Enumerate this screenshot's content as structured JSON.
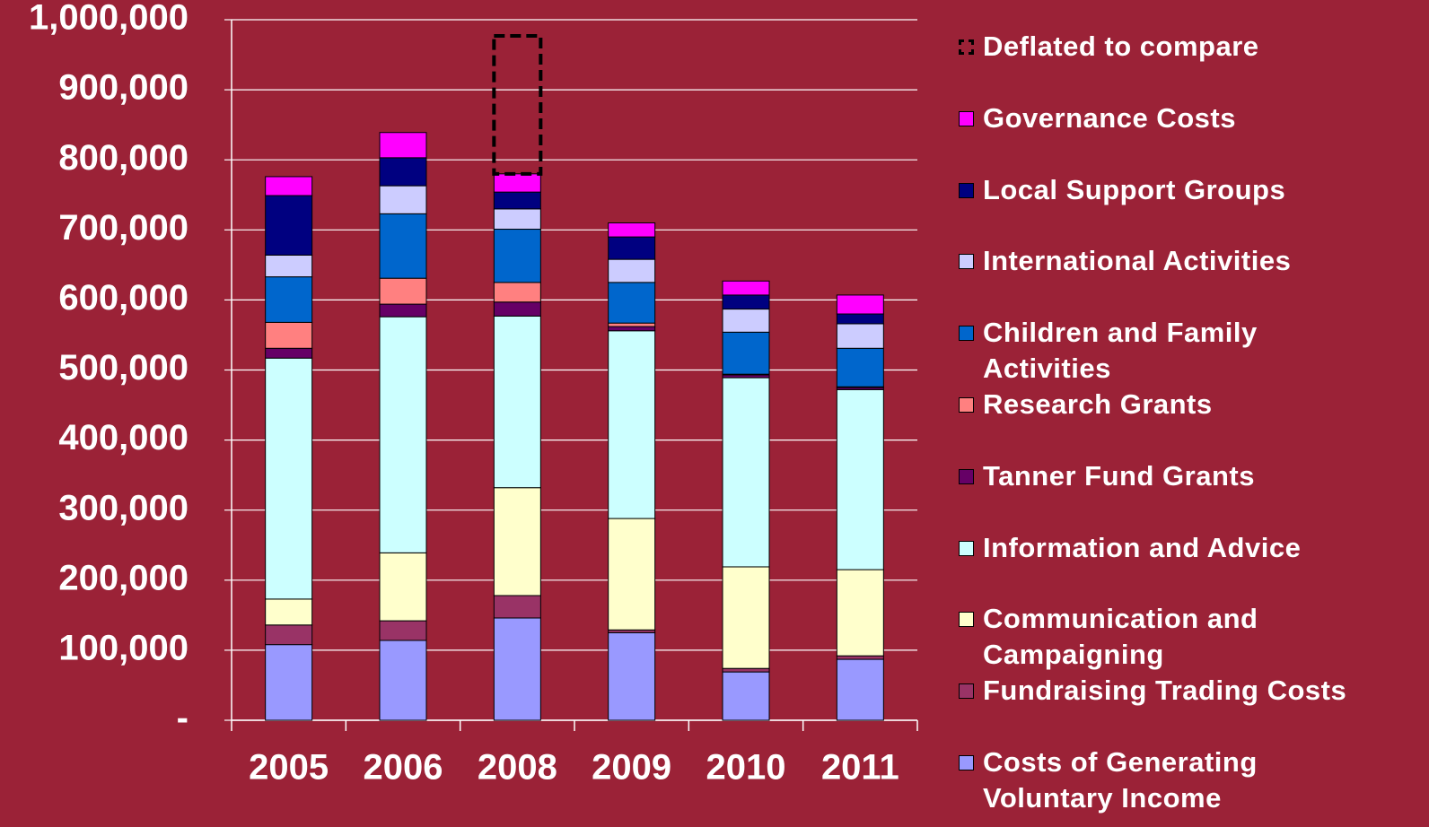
{
  "chart_data": {
    "type": "stacked_bar",
    "categories": [
      "2005",
      "2006",
      "2008",
      "2009",
      "2010",
      "2011"
    ],
    "series": [
      {
        "name": "Costs of Generating Voluntary Income",
        "color": "#9999ff",
        "values": [
          108000,
          114000,
          146000,
          125000,
          69000,
          87000
        ]
      },
      {
        "name": "Fundraising Trading Costs",
        "color": "#993366",
        "values": [
          28000,
          28000,
          32000,
          4000,
          5000,
          5000
        ]
      },
      {
        "name": "Communication and Campaigning",
        "color": "#ffffcc",
        "values": [
          37000,
          97000,
          154000,
          159000,
          145000,
          123000
        ]
      },
      {
        "name": "Information and Advice",
        "color": "#ccffff",
        "values": [
          344000,
          337000,
          245000,
          268000,
          270000,
          257000
        ]
      },
      {
        "name": "Tanner Fund Grants",
        "color": "#660066",
        "values": [
          14000,
          18000,
          20000,
          6000,
          4000,
          3000
        ]
      },
      {
        "name": "Research Grants",
        "color": "#ff8080",
        "values": [
          37000,
          37000,
          28000,
          5000,
          1000,
          1000
        ]
      },
      {
        "name": "Children and Family Activities",
        "color": "#0066cc",
        "values": [
          65000,
          92000,
          76000,
          58000,
          60000,
          55000
        ]
      },
      {
        "name": "International Activities",
        "color": "#ccccff",
        "values": [
          31000,
          40000,
          29000,
          33000,
          33000,
          35000
        ]
      },
      {
        "name": "Local Support Groups",
        "color": "#000080",
        "values": [
          85000,
          40000,
          24000,
          32000,
          20000,
          14000
        ]
      },
      {
        "name": "Governance Costs",
        "color": "#ff00ff",
        "values": [
          27000,
          36000,
          26000,
          20000,
          20000,
          27000
        ]
      },
      {
        "name": "Deflated to compare",
        "color": "#000000",
        "dashed": true,
        "values": [
          null,
          null,
          197000,
          null,
          null,
          null
        ]
      }
    ],
    "ylim": [
      0,
      1000000
    ],
    "yticks": [
      {
        "value": 0,
        "label": "-"
      },
      {
        "value": 100000,
        "label": "100,000"
      },
      {
        "value": 200000,
        "label": "200,000"
      },
      {
        "value": 300000,
        "label": "300,000"
      },
      {
        "value": 400000,
        "label": "400,000"
      },
      {
        "value": 500000,
        "label": "500,000"
      },
      {
        "value": 600000,
        "label": "600,000"
      },
      {
        "value": 700000,
        "label": "700,000"
      },
      {
        "value": 800000,
        "label": "800,000"
      },
      {
        "value": 900000,
        "label": "900,000"
      },
      {
        "value": 1000000,
        "label": "1,000,000"
      }
    ],
    "grid": true,
    "legend": "right",
    "background": "#9b2237"
  }
}
